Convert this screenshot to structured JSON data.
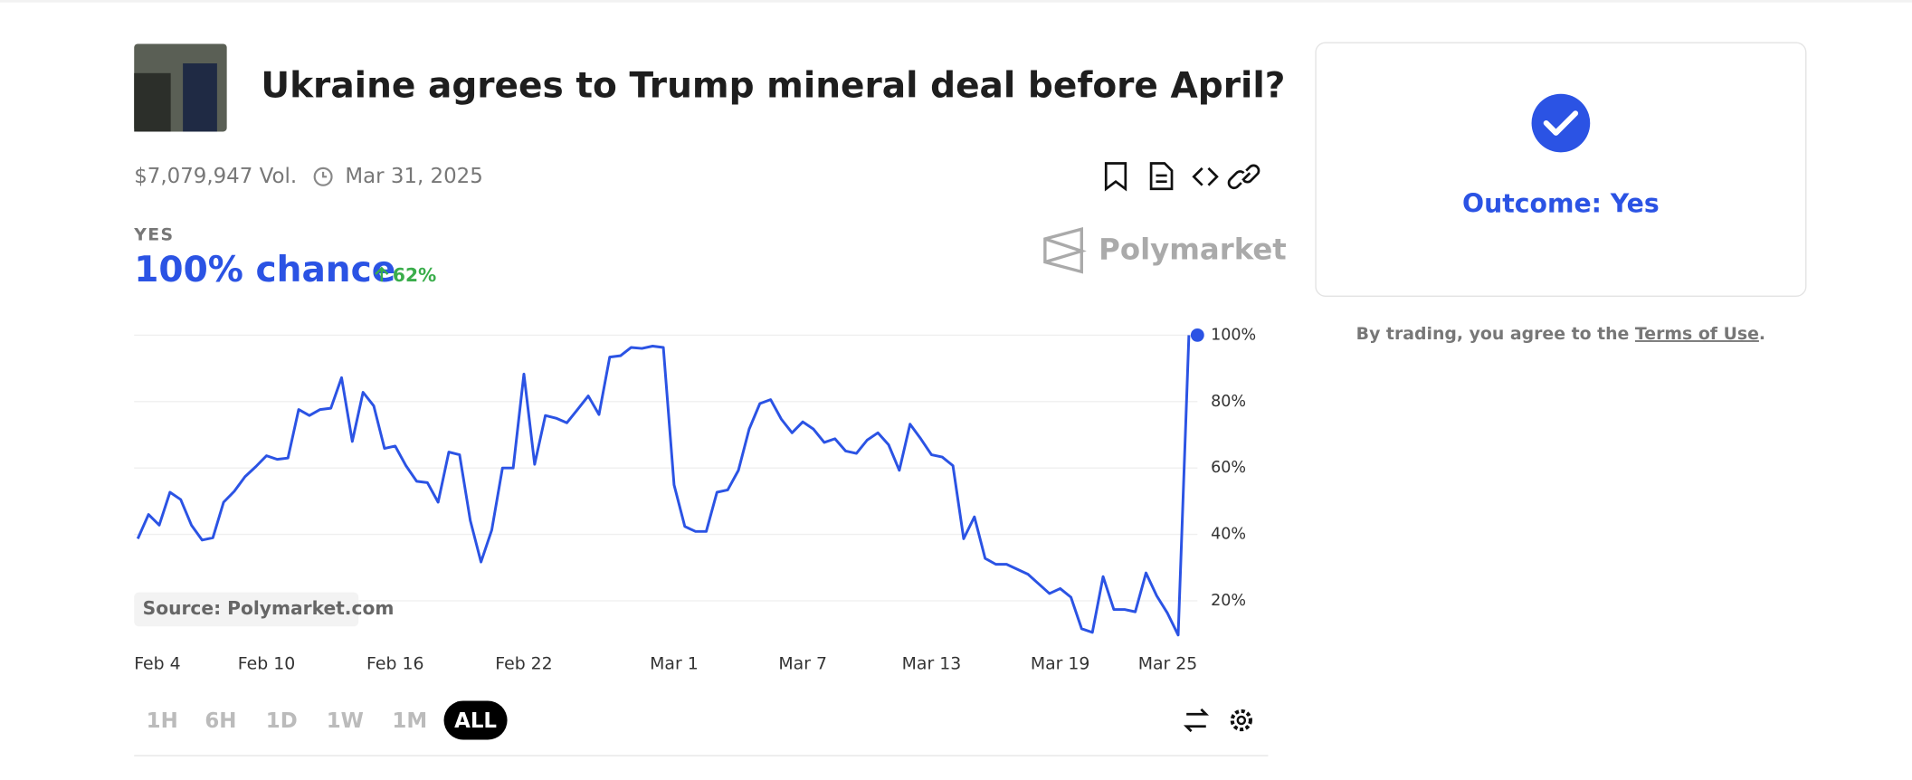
{
  "header": {
    "title": "Ukraine agrees to Trump mineral deal before April?",
    "volume": "$7,079,947 Vol.",
    "end_date": "Mar 31, 2025"
  },
  "summary": {
    "outcome_label": "YES",
    "chance": "100% chance",
    "change": "62%",
    "brand": "Polymarket",
    "source": "Source: Polymarket.com"
  },
  "time_ranges": [
    "1H",
    "6H",
    "1D",
    "1W",
    "1M",
    "ALL"
  ],
  "resolution": {
    "outcome": "Outcome: Yes",
    "terms_prefix": "By trading, you agree to the ",
    "terms_link": "Terms of Use",
    "terms_suffix": "."
  },
  "chart_data": {
    "type": "line",
    "color": "#2b53e4",
    "grid": true,
    "values": [
      38.7,
      46,
      42.8,
      52.7,
      50.5,
      42.8,
      38.3,
      39,
      49.7,
      53,
      57.4,
      60.4,
      63.7,
      62.6,
      63,
      77.6,
      75.8,
      77.6,
      78,
      87.2,
      68,
      82.8,
      78.7,
      65.9,
      66.6,
      60.7,
      56,
      55.6,
      49.7,
      64.8,
      64,
      44.2,
      31.7,
      41.3,
      60,
      60,
      88.3,
      61.1,
      75.8,
      75,
      73.6,
      77.6,
      81.7,
      76.1,
      93.4,
      93.8,
      96.3,
      96,
      96.7,
      96.3,
      54.9,
      42.4,
      40.9,
      40.9,
      52.7,
      53.4,
      59.3,
      71.7,
      79.4,
      80.6,
      74.7,
      70.6,
      73.9,
      71.7,
      67.7,
      68.8,
      65.1,
      64.4,
      68.4,
      70.6,
      67,
      59.3,
      73.2,
      68.8,
      64,
      63.3,
      60.7,
      38.7,
      45.3,
      32.8,
      31,
      31,
      29.5,
      28,
      25.1,
      22.2,
      23.7,
      21.1,
      11.6,
      10.5,
      27.3,
      17.4,
      17.4,
      16.7,
      28.4,
      21.5,
      16.3,
      9.7,
      100
    ],
    "xlim": [
      0,
      98
    ],
    "xticks": [
      {
        "value": 0,
        "label": "Feb 4"
      },
      {
        "value": 12,
        "label": "Feb 10"
      },
      {
        "value": 24,
        "label": "Feb 16"
      },
      {
        "value": 36,
        "label": "Feb 22"
      },
      {
        "value": 50,
        "label": "Mar 1"
      },
      {
        "value": 62,
        "label": "Mar 7"
      },
      {
        "value": 74,
        "label": "Mar 13"
      },
      {
        "value": 86,
        "label": "Mar 19"
      },
      {
        "value": 98,
        "label": "Mar 25"
      }
    ],
    "ylim": [
      0,
      100
    ],
    "yticks": [
      {
        "value": 20,
        "label": "20%"
      },
      {
        "value": 40,
        "label": "40%"
      },
      {
        "value": 60,
        "label": "60%"
      },
      {
        "value": 80,
        "label": "80%"
      },
      {
        "value": 100,
        "label": "100%"
      }
    ]
  }
}
